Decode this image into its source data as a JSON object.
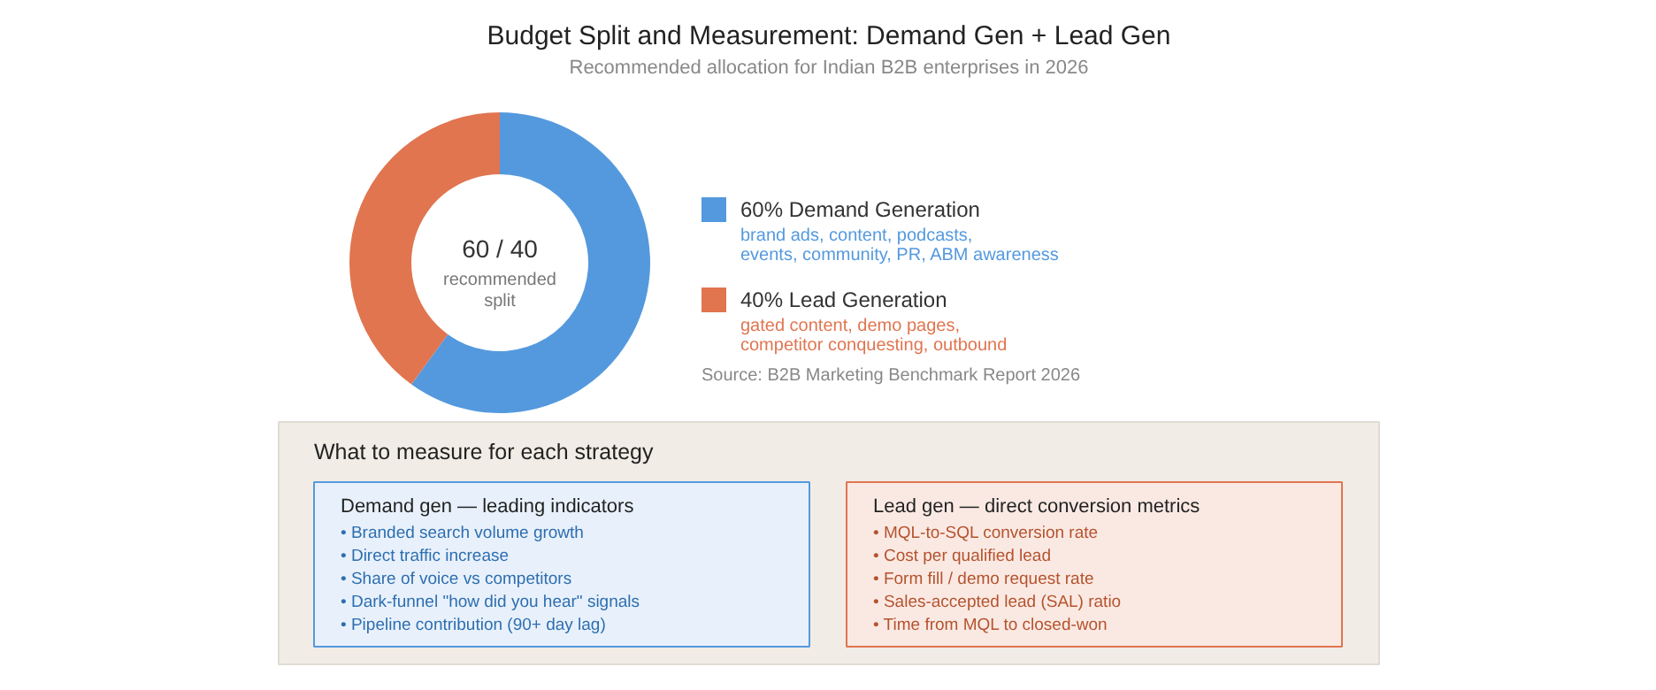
{
  "chart_data": [
    {
      "type": "donut",
      "title": "Budget Split and Measurement: Demand Gen + Lead Gen",
      "subtitle": "Recommended allocation for Indian B2B enterprises in 2026",
      "categories": [
        "Demand Generation",
        "Lead Generation"
      ],
      "values": [
        60,
        40
      ],
      "colors": [
        "#5499de",
        "#e07550"
      ],
      "value_labels": [
        "60%",
        "40%"
      ],
      "legend": "right",
      "annotations": [
        "60 / 40",
        "recommended split",
        "brand ads, content, podcasts, events, community, PR, ABM awareness",
        "gated content, demo pages, competitor conquesting, outbound",
        "Source: B2B Marketing Benchmark Report 2026"
      ]
    },
    {
      "type": "other",
      "title": "What to measure for each strategy",
      "annotations": [
        "Demand gen — leading indicators",
        "• Branded search volume growth",
        "• Direct traffic increase",
        "• Share of voice vs competitors",
        "• Dark-funnel \"how did you hear\" signals",
        "• Pipeline contribution (90+ day lag)",
        "Lead gen — direct conversion metrics",
        "• MQL-to-SQL conversion rate",
        "• Cost per qualified lead",
        "• Form fill / demo request rate",
        "• Sales-accepted lead (SAL) ratio",
        "• Time from MQL to closed-won"
      ]
    }
  ]
}
